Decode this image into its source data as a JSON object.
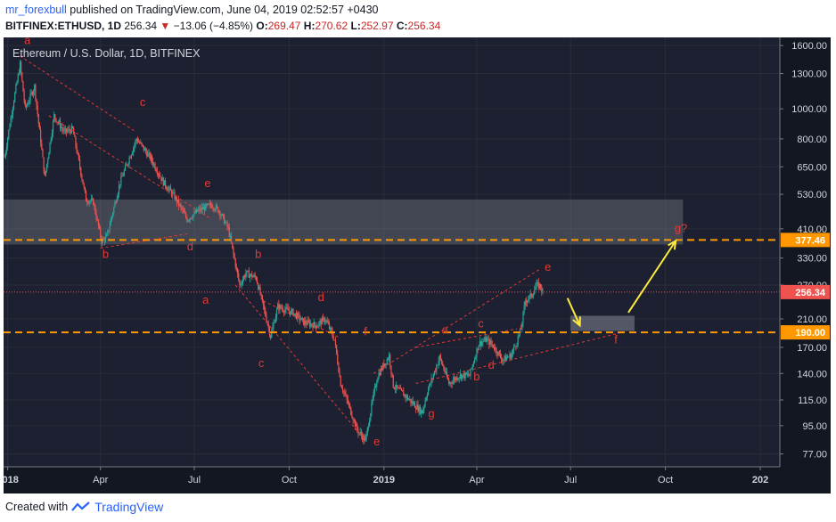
{
  "header": {
    "author": "mr_forexbull",
    "published": "published on TradingView.com, June 04, 2019 02:52:57 +0430",
    "symbol": "BITFINEX:ETHUSD, 1D",
    "last": "256.34",
    "change": "−13.06 (−4.85%)",
    "o_label": "O:",
    "o": "269.47",
    "h_label": "H:",
    "h": "270.62",
    "l_label": "L:",
    "l": "252.97",
    "c_label": "C:",
    "c": "256.34"
  },
  "footer": {
    "created_with": "Created with",
    "brand": "TradingView"
  },
  "chart_data": {
    "type": "candlestick",
    "title": "Ethereum / U.S. Dollar, 1D, BITFINEX",
    "y_scale": "log",
    "ylim": [
      70,
      1700
    ],
    "xlim": [
      "2017-12-28",
      "2020-01-20"
    ],
    "y_ticks": [
      1600,
      1300,
      1000,
      800,
      650,
      530,
      410,
      330,
      270,
      210,
      170,
      140,
      115,
      95,
      77
    ],
    "x_ticks": [
      {
        "date": "2018-01-01",
        "label": "2018"
      },
      {
        "date": "2018-04-01",
        "label": "Apr"
      },
      {
        "date": "2018-07-01",
        "label": "Jul"
      },
      {
        "date": "2018-10-01",
        "label": "Oct"
      },
      {
        "date": "2019-01-01",
        "label": "2019"
      },
      {
        "date": "2019-04-01",
        "label": "Apr"
      },
      {
        "date": "2019-07-01",
        "label": "Jul"
      },
      {
        "date": "2019-10-01",
        "label": "Oct"
      },
      {
        "date": "2020-01-01",
        "label": "202"
      }
    ],
    "price_path": [
      [
        "2017-12-29",
        700
      ],
      [
        "2018-01-05",
        980
      ],
      [
        "2018-01-13",
        1390
      ],
      [
        "2018-01-18",
        1000
      ],
      [
        "2018-01-27",
        1180
      ],
      [
        "2018-02-06",
        600
      ],
      [
        "2018-02-15",
        950
      ],
      [
        "2018-02-25",
        840
      ],
      [
        "2018-03-05",
        860
      ],
      [
        "2018-03-18",
        510
      ],
      [
        "2018-03-25",
        500
      ],
      [
        "2018-04-02",
        375
      ],
      [
        "2018-04-07",
        385
      ],
      [
        "2018-04-20",
        580
      ],
      [
        "2018-05-06",
        800
      ],
      [
        "2018-05-20",
        690
      ],
      [
        "2018-06-01",
        580
      ],
      [
        "2018-06-12",
        520
      ],
      [
        "2018-06-24",
        440
      ],
      [
        "2018-07-05",
        470
      ],
      [
        "2018-07-18",
        490
      ],
      [
        "2018-07-25",
        470
      ],
      [
        "2018-08-03",
        410
      ],
      [
        "2018-08-14",
        270
      ],
      [
        "2018-08-20",
        295
      ],
      [
        "2018-08-30",
        285
      ],
      [
        "2018-09-06",
        230
      ],
      [
        "2018-09-13",
        185
      ],
      [
        "2018-09-20",
        230
      ],
      [
        "2018-09-27",
        225
      ],
      [
        "2018-10-05",
        220
      ],
      [
        "2018-10-15",
        205
      ],
      [
        "2018-10-27",
        200
      ],
      [
        "2018-11-05",
        210
      ],
      [
        "2018-11-14",
        180
      ],
      [
        "2018-11-20",
        130
      ],
      [
        "2018-11-28",
        110
      ],
      [
        "2018-12-06",
        92
      ],
      [
        "2018-12-14",
        85
      ],
      [
        "2018-12-22",
        120
      ],
      [
        "2018-12-26",
        138
      ],
      [
        "2019-01-06",
        160
      ],
      [
        "2019-01-10",
        128
      ],
      [
        "2019-01-20",
        120
      ],
      [
        "2019-02-07",
        105
      ],
      [
        "2019-02-12",
        122
      ],
      [
        "2019-02-24",
        158
      ],
      [
        "2019-03-05",
        130
      ],
      [
        "2019-03-15",
        138
      ],
      [
        "2019-03-25",
        138
      ],
      [
        "2019-04-03",
        175
      ],
      [
        "2019-04-10",
        180
      ],
      [
        "2019-04-17",
        172
      ],
      [
        "2019-04-26",
        155
      ],
      [
        "2019-05-04",
        160
      ],
      [
        "2019-05-10",
        178
      ],
      [
        "2019-05-14",
        195
      ],
      [
        "2019-05-18",
        240
      ],
      [
        "2019-05-24",
        250
      ],
      [
        "2019-05-29",
        270
      ],
      [
        "2019-06-02",
        268
      ],
      [
        "2019-06-04",
        256.34
      ]
    ],
    "levels": [
      {
        "name": "resistance",
        "price": 377.46,
        "label": "377.46",
        "style": "dashed",
        "color": "#ff9800"
      },
      {
        "name": "support",
        "price": 190.0,
        "label": "190.00",
        "style": "dashed",
        "color": "#ff9800"
      },
      {
        "name": "last-price",
        "price": 256.34,
        "label": "256.34",
        "style": "dotted",
        "color": "#ef5350"
      }
    ],
    "zones": [
      {
        "name": "resistance-zone",
        "x0": "2017-12-28",
        "x1": "2019-10-18",
        "y0": 365,
        "y1": 510
      },
      {
        "name": "target-zone",
        "x0": "2019-07-01",
        "x1": "2019-09-01",
        "y0": 192,
        "y1": 215
      }
    ],
    "dashed_lines": [
      {
        "name": "a-c",
        "from": [
          "2018-01-13",
          1480
        ],
        "to": [
          "2018-05-06",
          840
        ]
      },
      {
        "name": "b-d",
        "from": [
          "2018-04-01",
          355
        ],
        "to": [
          "2018-06-24",
          395
        ]
      },
      {
        "name": "c-e",
        "from": [
          "2018-02-10",
          950
        ],
        "to": [
          "2018-07-18",
          440
        ]
      },
      {
        "name": "decline-upper",
        "from": [
          "2018-09-06",
          240
        ],
        "to": [
          "2018-11-20",
          182
        ]
      },
      {
        "name": "decline-lower",
        "from": [
          "2018-08-10",
          270
        ],
        "to": [
          "2018-12-14",
          85
        ]
      },
      {
        "name": "f-d-upper",
        "from": [
          "2018-12-22",
          140
        ],
        "to": [
          "2019-06-02",
          305
        ]
      },
      {
        "name": "wedge-lower",
        "from": [
          "2019-02-01",
          130
        ],
        "to": [
          "2019-08-20",
          190
        ]
      },
      {
        "name": "wedge-upper",
        "from": [
          "2019-02-01",
          170
        ],
        "to": [
          "2019-05-10",
          195
        ]
      }
    ],
    "arrows": [
      {
        "name": "down-arrow",
        "from": [
          "2019-06-28",
          245
        ],
        "to": [
          "2019-07-10",
          200
        ]
      },
      {
        "name": "up-arrow",
        "from": [
          "2019-08-26",
          220
        ],
        "to": [
          "2019-10-11",
          375
        ]
      }
    ],
    "labels": [
      {
        "text": "a",
        "date": "2018-01-20",
        "price": 1620
      },
      {
        "text": "c",
        "date": "2018-05-12",
        "price": 1020
      },
      {
        "text": "b",
        "date": "2018-04-06",
        "price": 330
      },
      {
        "text": "d",
        "date": "2018-06-27",
        "price": 350
      },
      {
        "text": "e",
        "date": "2018-07-14",
        "price": 560
      },
      {
        "text": "a",
        "date": "2018-07-12",
        "price": 235
      },
      {
        "text": "b",
        "date": "2018-09-01",
        "price": 330
      },
      {
        "text": "c",
        "date": "2018-09-04",
        "price": 147
      },
      {
        "text": "d",
        "date": "2018-11-01",
        "price": 240
      },
      {
        "text": "f",
        "date": "2018-12-14",
        "price": 186
      },
      {
        "text": "e",
        "date": "2018-12-25",
        "price": 82
      },
      {
        "text": "a",
        "date": "2019-03-01",
        "price": 188
      },
      {
        "text": "g",
        "date": "2019-02-16",
        "price": 101
      },
      {
        "text": "b",
        "date": "2019-04-01",
        "price": 133
      },
      {
        "text": "c",
        "date": "2019-04-05",
        "price": 197
      },
      {
        "text": "d",
        "date": "2019-04-15",
        "price": 145
      },
      {
        "text": "e",
        "date": "2019-06-09",
        "price": 300
      },
      {
        "text": "f",
        "date": "2019-08-14",
        "price": 175
      },
      {
        "text": "g?",
        "date": "2019-10-16",
        "price": 400
      }
    ]
  }
}
